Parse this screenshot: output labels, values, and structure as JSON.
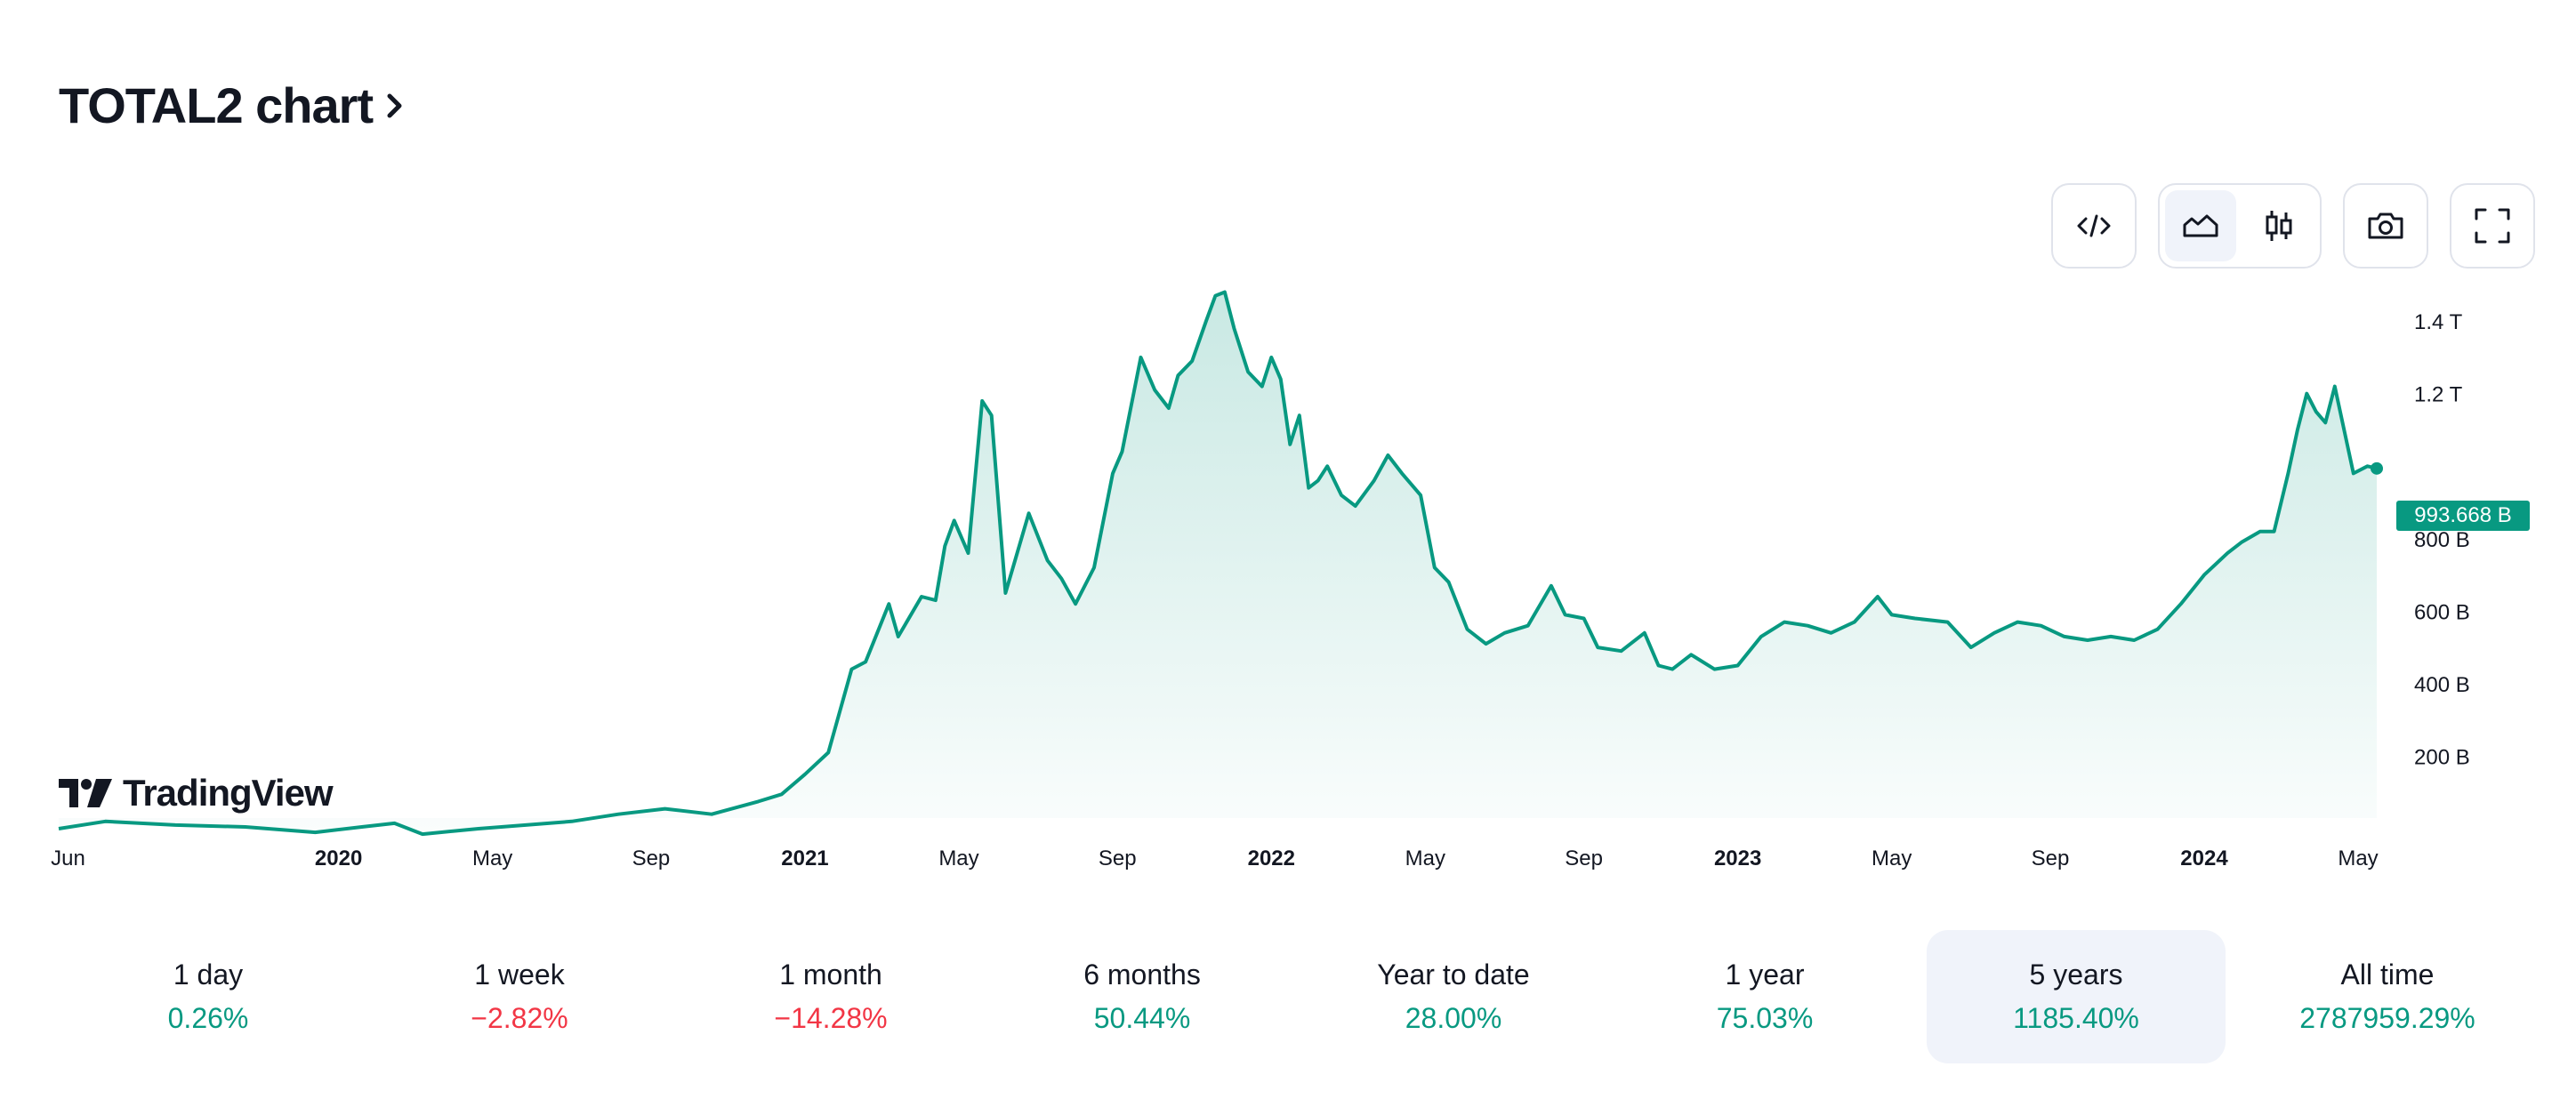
{
  "header": {
    "title": "TOTAL2 chart"
  },
  "toolbar": {
    "buttons": [
      {
        "icon": "embed-code-icon"
      },
      {
        "icon": "area-chart-icon",
        "active": true
      },
      {
        "icon": "candlestick-chart-icon"
      },
      {
        "icon": "camera-icon"
      },
      {
        "icon": "fullscreen-icon"
      }
    ]
  },
  "logo": {
    "text": "TradingView"
  },
  "price_label": "993.668 B",
  "performance": [
    {
      "label": "1 day",
      "value": "0.26%",
      "trend": "up"
    },
    {
      "label": "1 week",
      "value": "−2.82%",
      "trend": "down"
    },
    {
      "label": "1 month",
      "value": "−14.28%",
      "trend": "down"
    },
    {
      "label": "6 months",
      "value": "50.44%",
      "trend": "up"
    },
    {
      "label": "Year to date",
      "value": "28.00%",
      "trend": "up"
    },
    {
      "label": "1 year",
      "value": "75.03%",
      "trend": "up"
    },
    {
      "label": "5 years",
      "value": "1185.40%",
      "trend": "up",
      "selected": true
    },
    {
      "label": "All time",
      "value": "2787959.29%",
      "trend": "up"
    }
  ],
  "colors": {
    "line": "#089981",
    "positive": "#089981",
    "negative": "#f23645",
    "selected_bg": "#f0f3fa"
  },
  "chart_data": {
    "type": "area",
    "title": "",
    "xlabel": "",
    "ylabel": "",
    "ylim": [
      0,
      1550
    ],
    "unit": "B",
    "y_ticks": [
      {
        "value": 200,
        "label": "200 B"
      },
      {
        "value": 400,
        "label": "400 B"
      },
      {
        "value": 600,
        "label": "600 B"
      },
      {
        "value": 800,
        "label": "800 B"
      },
      {
        "value": 1200,
        "label": "1.2 T"
      },
      {
        "value": 1400,
        "label": "1.4 T"
      }
    ],
    "x_ticks": [
      {
        "t": 2019.42,
        "label": "Jun",
        "bold": false
      },
      {
        "t": 2020.0,
        "label": "2020",
        "bold": true
      },
      {
        "t": 2020.33,
        "label": "May",
        "bold": false
      },
      {
        "t": 2020.67,
        "label": "Sep",
        "bold": false
      },
      {
        "t": 2021.0,
        "label": "2021",
        "bold": true
      },
      {
        "t": 2021.33,
        "label": "May",
        "bold": false
      },
      {
        "t": 2021.67,
        "label": "Sep",
        "bold": false
      },
      {
        "t": 2022.0,
        "label": "2022",
        "bold": true
      },
      {
        "t": 2022.33,
        "label": "May",
        "bold": false
      },
      {
        "t": 2022.67,
        "label": "Sep",
        "bold": false
      },
      {
        "t": 2023.0,
        "label": "2023",
        "bold": true
      },
      {
        "t": 2023.33,
        "label": "May",
        "bold": false
      },
      {
        "t": 2023.67,
        "label": "Sep",
        "bold": false
      },
      {
        "t": 2024.0,
        "label": "2024",
        "bold": true
      },
      {
        "t": 2024.33,
        "label": "May",
        "bold": false
      }
    ],
    "series": [
      {
        "points": [
          [
            2019.4,
            0
          ],
          [
            2019.5,
            20
          ],
          [
            2019.65,
            10
          ],
          [
            2019.8,
            5
          ],
          [
            2019.95,
            -10
          ],
          [
            2020.05,
            5
          ],
          [
            2020.12,
            15
          ],
          [
            2020.18,
            -15
          ],
          [
            2020.3,
            0
          ],
          [
            2020.5,
            20
          ],
          [
            2020.6,
            40
          ],
          [
            2020.7,
            55
          ],
          [
            2020.8,
            40
          ],
          [
            2020.9,
            75
          ],
          [
            2020.95,
            95
          ],
          [
            2021.0,
            150
          ],
          [
            2021.05,
            210
          ],
          [
            2021.1,
            440
          ],
          [
            2021.13,
            460
          ],
          [
            2021.18,
            620
          ],
          [
            2021.2,
            530
          ],
          [
            2021.25,
            640
          ],
          [
            2021.28,
            630
          ],
          [
            2021.3,
            780
          ],
          [
            2021.32,
            850
          ],
          [
            2021.35,
            760
          ],
          [
            2021.38,
            1180
          ],
          [
            2021.4,
            1140
          ],
          [
            2021.43,
            650
          ],
          [
            2021.48,
            870
          ],
          [
            2021.52,
            740
          ],
          [
            2021.55,
            690
          ],
          [
            2021.58,
            620
          ],
          [
            2021.62,
            720
          ],
          [
            2021.66,
            980
          ],
          [
            2021.68,
            1040
          ],
          [
            2021.72,
            1300
          ],
          [
            2021.75,
            1210
          ],
          [
            2021.78,
            1160
          ],
          [
            2021.8,
            1250
          ],
          [
            2021.83,
            1290
          ],
          [
            2021.86,
            1400
          ],
          [
            2021.88,
            1470
          ],
          [
            2021.9,
            1480
          ],
          [
            2021.92,
            1380
          ],
          [
            2021.95,
            1260
          ],
          [
            2021.98,
            1220
          ],
          [
            2022.0,
            1300
          ],
          [
            2022.02,
            1240
          ],
          [
            2022.04,
            1060
          ],
          [
            2022.06,
            1140
          ],
          [
            2022.08,
            940
          ],
          [
            2022.1,
            960
          ],
          [
            2022.12,
            1000
          ],
          [
            2022.15,
            920
          ],
          [
            2022.18,
            890
          ],
          [
            2022.22,
            960
          ],
          [
            2022.25,
            1030
          ],
          [
            2022.28,
            980
          ],
          [
            2022.32,
            920
          ],
          [
            2022.35,
            720
          ],
          [
            2022.38,
            680
          ],
          [
            2022.42,
            550
          ],
          [
            2022.46,
            510
          ],
          [
            2022.5,
            540
          ],
          [
            2022.55,
            560
          ],
          [
            2022.6,
            670
          ],
          [
            2022.63,
            590
          ],
          [
            2022.67,
            580
          ],
          [
            2022.7,
            500
          ],
          [
            2022.75,
            490
          ],
          [
            2022.8,
            540
          ],
          [
            2022.83,
            450
          ],
          [
            2022.86,
            440
          ],
          [
            2022.9,
            480
          ],
          [
            2022.95,
            440
          ],
          [
            2023.0,
            450
          ],
          [
            2023.05,
            530
          ],
          [
            2023.1,
            570
          ],
          [
            2023.15,
            560
          ],
          [
            2023.2,
            540
          ],
          [
            2023.25,
            570
          ],
          [
            2023.3,
            640
          ],
          [
            2023.33,
            590
          ],
          [
            2023.38,
            580
          ],
          [
            2023.45,
            570
          ],
          [
            2023.5,
            500
          ],
          [
            2023.55,
            540
          ],
          [
            2023.6,
            570
          ],
          [
            2023.65,
            560
          ],
          [
            2023.7,
            530
          ],
          [
            2023.75,
            520
          ],
          [
            2023.8,
            530
          ],
          [
            2023.85,
            520
          ],
          [
            2023.9,
            550
          ],
          [
            2023.95,
            620
          ],
          [
            2024.0,
            700
          ],
          [
            2024.05,
            760
          ],
          [
            2024.08,
            790
          ],
          [
            2024.12,
            820
          ],
          [
            2024.15,
            820
          ],
          [
            2024.18,
            980
          ],
          [
            2024.2,
            1100
          ],
          [
            2024.22,
            1200
          ],
          [
            2024.24,
            1150
          ],
          [
            2024.26,
            1120
          ],
          [
            2024.28,
            1220
          ],
          [
            2024.3,
            1100
          ],
          [
            2024.32,
            980
          ],
          [
            2024.35,
            1000
          ],
          [
            2024.37,
            993.668
          ]
        ]
      }
    ]
  }
}
